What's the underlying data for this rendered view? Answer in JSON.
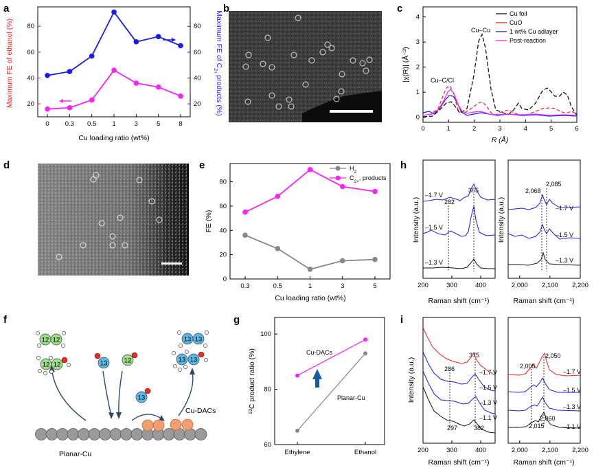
{
  "panels": {
    "a": "a",
    "b": "b",
    "c": "c",
    "d": "d",
    "e": "e",
    "f": "f",
    "g": "g",
    "h": "h",
    "i": "i"
  },
  "colors": {
    "red": "#ee2222",
    "blue": "#1a1aee",
    "magenta": "#ee22ee",
    "pink": "#ff22ff",
    "gray": "#888888",
    "black": "#111111",
    "green": "#9fdc8a",
    "cyan": "#59b8e6",
    "orange": "#f0a070",
    "navy": "#1a5aa0",
    "darkred": "#e0302a"
  },
  "chart_data": [
    {
      "id": "a",
      "type": "line",
      "categories": [
        "0",
        "0.3",
        "0.5",
        "1",
        "3",
        "5",
        "8"
      ],
      "xlabel": "Cu loading ratio (wt%)",
      "ylabel_left": "Maximum FE of ethanol (%)",
      "ylabel_right_parts": [
        "Maximum FE of C",
        "2+",
        "products (%)"
      ],
      "ylim": [
        10,
        95
      ],
      "yticks": [
        "20",
        "40",
        "60",
        "80"
      ],
      "series": [
        {
          "name": "ethanol",
          "axis": "left",
          "values": [
            16,
            17,
            23,
            46,
            36,
            33,
            26
          ]
        },
        {
          "name": "C2+",
          "axis": "right",
          "values": [
            42,
            45,
            57,
            91,
            68,
            72,
            65
          ]
        }
      ]
    },
    {
      "id": "c",
      "type": "line",
      "xlabel": "R (Å)",
      "ylabel": "|χ(R)| (Å⁻³)",
      "xticks": [
        "0",
        "1",
        "2",
        "3",
        "4",
        "5",
        "6"
      ],
      "yticks": [
        "0",
        "1",
        "2",
        "3",
        "4"
      ],
      "xlim": [
        0,
        6
      ],
      "ylim": [
        -0.2,
        4.4
      ],
      "legend": [
        "Cu foil",
        "CuO",
        "1 wt% Cu adlayer",
        "Post-reaction"
      ],
      "annotations": [
        "Cu–Cu",
        "Cu–C/Cl"
      ]
    },
    {
      "id": "e",
      "type": "line",
      "categories": [
        "0.3",
        "0.5",
        "1",
        "3",
        "5"
      ],
      "xlabel": "Cu loading ratio (wt%)",
      "ylabel": "FE (%)",
      "yticks": [
        "0",
        "20",
        "40",
        "60",
        "80"
      ],
      "ylim": [
        0,
        95
      ],
      "series": [
        {
          "name": "H2",
          "legend": [
            "H",
            "2",
            ""
          ],
          "values": [
            36,
            25,
            8,
            15,
            16
          ]
        },
        {
          "name": "C2+ products",
          "legend": [
            "C",
            "2+",
            ", products"
          ],
          "values": [
            55,
            68,
            90,
            76,
            72
          ]
        }
      ]
    },
    {
      "id": "g",
      "type": "line",
      "categories": [
        "Ethylene",
        "Ethanol"
      ],
      "ylabel": "13C product ratio (%)",
      "ylabel_parts": [
        "13",
        "C product ratio (%)"
      ],
      "yticks": [
        "60",
        "80",
        "100"
      ],
      "ylim": [
        60,
        106
      ],
      "series": [
        {
          "name": "Cu-DACs",
          "values": [
            85,
            98
          ]
        },
        {
          "name": "Planar-Cu",
          "values": [
            65,
            93
          ]
        }
      ]
    },
    {
      "id": "h-left",
      "type": "line",
      "xlabel": "Raman shift (cm⁻¹)",
      "ylabel": "Intensity (a.u.)",
      "xticks": [
        "200",
        "300",
        "400"
      ],
      "potentials": [
        "–1.7 V",
        "–1.5 V",
        "–1.3 V"
      ],
      "peaks": [
        "282",
        "365"
      ]
    },
    {
      "id": "h-right",
      "type": "line",
      "xlabel": "Raman shift (cm⁻¹)",
      "ylabel": "Intensity (a.u.)",
      "xticks": [
        "2,000",
        "2,100",
        "2,200"
      ],
      "potentials": [
        "–1.7 V",
        "–1.5 V",
        "–1.3 V"
      ],
      "peaks": [
        "2,068",
        "2,085"
      ]
    },
    {
      "id": "i-left",
      "type": "line",
      "xlabel": "Raman shift (cm⁻¹)",
      "ylabel": "Intensity (a.u.)",
      "xticks": [
        "200",
        "300",
        "400"
      ],
      "potentials": [
        "–1.7 V",
        "–1.5 V",
        "–1.3 V",
        "–1.1 V"
      ],
      "peaks": [
        "286",
        "375",
        "297",
        "382"
      ]
    },
    {
      "id": "i-right",
      "type": "line",
      "xlabel": "Raman shift (cm⁻¹)",
      "xticks": [
        "2,000",
        "2,100",
        "2,200"
      ],
      "potentials": [
        "–1.7 V",
        "–1.5 V",
        "–1.3 V",
        "–1.1 V"
      ],
      "peaks": [
        "2,050",
        "2,005",
        "2,060",
        "2,015"
      ]
    }
  ],
  "diagram_f": {
    "label_12": "12",
    "label_13": "13",
    "planar": "Planar-Cu",
    "dacs": "Cu-DACs"
  },
  "images": {
    "scale_bar": "scale bar"
  }
}
